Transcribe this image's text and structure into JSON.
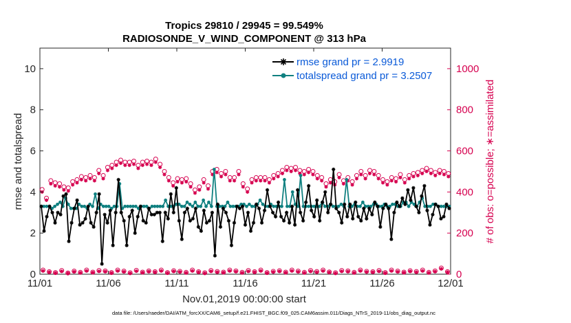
{
  "chart_data": {
    "type": "line",
    "title_line1": "Tropics 29810 / 29945 = 99.549%",
    "title_line2": "RADIOSONDE_V_WIND_COMPONENT @ 313 hPa",
    "xlabel": "Nov.01,2019 00:00:00 start",
    "ylabel_left": "rmse and totalspread",
    "ylabel_right": "# of obs: o=possible; ∗=assimilated",
    "xlim": [
      0,
      30
    ],
    "ylim_left": [
      0,
      11
    ],
    "ylim_right": [
      0,
      1100
    ],
    "x_ticks": [
      0,
      5,
      10,
      15,
      20,
      25,
      30
    ],
    "x_tick_labels": [
      "11/01",
      "11/06",
      "11/11",
      "11/16",
      "11/21",
      "11/26",
      "12/01"
    ],
    "y_left_ticks": [
      "0",
      "2",
      "4",
      "6",
      "8",
      "10"
    ],
    "y_right_ticks": [
      "0",
      "200",
      "400",
      "600",
      "800",
      "1000"
    ],
    "legend": {
      "rmse": "rmse grand pr = 2.9919",
      "spread": "totalspread grand pr = 3.2507"
    },
    "colors": {
      "rmse": "#000000",
      "spread": "#0f8080",
      "obs": "#d6004f",
      "legend_text": "#0a5ad8"
    },
    "series": [
      {
        "name": "rmse",
        "values": [
          3.3,
          2.1,
          2.8,
          3.3,
          3.0,
          2.5,
          3.0,
          2.9,
          3.8,
          3.9,
          1.6,
          2.5,
          3.2,
          3.6,
          2.4,
          2.5,
          2.7,
          3.3,
          2.5,
          2.3,
          3.0,
          3.9,
          0.5,
          2.9,
          2.5,
          3.1,
          1.4,
          3.0,
          4.6,
          3.0,
          2.6,
          1.4,
          2.8,
          3.1,
          2.0,
          2.8,
          3.3,
          2.6,
          2.5,
          3.2,
          2.9,
          2.9,
          3.0,
          3.0,
          1.6,
          3.0,
          2.7,
          3.9,
          3.0,
          4.2,
          2.6,
          1.7,
          3.0,
          3.2,
          2.6,
          2.7,
          3.2,
          2.3,
          2.1,
          3.1,
          2.5,
          2.6,
          3.0,
          0.9,
          3.4,
          2.3,
          3.2,
          3.0,
          2.6,
          1.4,
          2.5,
          3.3,
          3.2,
          3.3,
          2.4,
          3.0,
          2.1,
          2.5,
          3.4,
          3.2,
          2.5,
          3.1,
          4.1,
          3.3,
          3.0,
          2.8,
          3.5,
          2.8,
          2.6,
          3.0,
          2.5,
          3.3,
          2.4,
          4.1,
          3.0,
          2.6,
          3.5,
          4.3,
          3.1,
          2.8,
          3.6,
          2.6,
          3.5,
          4.0,
          3.0,
          3.4,
          5.1,
          3.2,
          3.0,
          2.5,
          3.4,
          2.8,
          3.4,
          2.7,
          3.5,
          2.8,
          2.6,
          3.2,
          2.7,
          3.2,
          2.9,
          3.5,
          3.3,
          2.3,
          3.2,
          3.4,
          3.2,
          1.7,
          3.0,
          3.5,
          3.3,
          3.7,
          3.4,
          4.1,
          3.6,
          4.2,
          3.3,
          3.0,
          3.8,
          4.3,
          3.1,
          2.4,
          2.9,
          3.4,
          3.3,
          2.7,
          2.8,
          3.4,
          3.2
        ]
      },
      {
        "name": "totalspread",
        "values": [
          3.3,
          3.3,
          3.3,
          3.3,
          3.2,
          3.3,
          3.4,
          3.5,
          3.3,
          3.7,
          3.4,
          3.2,
          3.2,
          3.2,
          3.4,
          3.3,
          3.3,
          3.2,
          3.4,
          3.3,
          3.9,
          3.2,
          3.4,
          3.3,
          3.3,
          3.3,
          3.2,
          3.3,
          3.3,
          4.4,
          3.2,
          3.3,
          3.3,
          3.3,
          3.3,
          3.3,
          3.2,
          3.3,
          3.3,
          3.3,
          3.2,
          3.3,
          3.3,
          3.3,
          3.3,
          3.3,
          3.6,
          3.3,
          3.3,
          3.3,
          3.4,
          3.4,
          3.3,
          3.3,
          3.5,
          3.4,
          3.3,
          3.5,
          3.3,
          3.3,
          3.6,
          3.3,
          3.5,
          3.3,
          5.1,
          3.3,
          3.3,
          3.3,
          3.3,
          3.5,
          3.3,
          3.3,
          3.3,
          3.3,
          3.4,
          3.4,
          3.3,
          3.4,
          3.3,
          3.3,
          3.4,
          3.6,
          3.4,
          3.3,
          3.3,
          3.4,
          3.3,
          3.3,
          3.3,
          3.3,
          4.6,
          3.3,
          3.3,
          4.0,
          3.4,
          3.3,
          4.8,
          3.3,
          3.3,
          3.3,
          3.3,
          3.3,
          3.3,
          3.3,
          3.5,
          3.3,
          3.3,
          3.4,
          3.3,
          3.3,
          3.3,
          3.4,
          3.3,
          4.6,
          3.3,
          3.3,
          3.4,
          3.3,
          3.3,
          3.5,
          3.3,
          3.3,
          3.3,
          3.4,
          3.4,
          3.3,
          3.3,
          3.4,
          3.3,
          3.3,
          3.4,
          3.4,
          3.3,
          3.3,
          3.5,
          3.5,
          3.3,
          3.5,
          3.4,
          3.3,
          3.5,
          3.7,
          3.3,
          3.3,
          3.3,
          3.4,
          3.4,
          3.3,
          3.3,
          3.3,
          3.3,
          3.3
        ]
      }
    ],
    "obs_possible_high": [
      412,
      370,
      455,
      445,
      440,
      425,
      420,
      450,
      460,
      475,
      470,
      480,
      470,
      505,
      480,
      520,
      530,
      545,
      555,
      545,
      545,
      550,
      530,
      545,
      550,
      545,
      560,
      535,
      500,
      470,
      445,
      465,
      460,
      465,
      440,
      410,
      425,
      460,
      430,
      500,
      510,
      490,
      500,
      470,
      470,
      500,
      440,
      415,
      460,
      470,
      470,
      470,
      460,
      480,
      490,
      505,
      520,
      515,
      520,
      505,
      500,
      510,
      500,
      480,
      470,
      440,
      460,
      450,
      485,
      455,
      470,
      450,
      480,
      500,
      480,
      505,
      500,
      480,
      460,
      450,
      470,
      465,
      485,
      460,
      480,
      490,
      495,
      505,
      515,
      505,
      495,
      505,
      500,
      490
    ],
    "obs_assimilated_high": [
      400,
      360,
      440,
      430,
      425,
      410,
      405,
      435,
      445,
      460,
      455,
      465,
      455,
      490,
      465,
      505,
      515,
      530,
      540,
      530,
      530,
      535,
      515,
      530,
      535,
      530,
      545,
      520,
      485,
      455,
      430,
      450,
      445,
      450,
      425,
      395,
      410,
      445,
      415,
      485,
      495,
      475,
      485,
      455,
      455,
      485,
      425,
      400,
      445,
      455,
      455,
      455,
      445,
      465,
      475,
      490,
      505,
      500,
      505,
      490,
      485,
      495,
      485,
      465,
      455,
      425,
      445,
      435,
      470,
      440,
      455,
      435,
      465,
      485,
      465,
      490,
      485,
      465,
      445,
      435,
      455,
      450,
      470,
      445,
      465,
      475,
      480,
      490,
      500,
      490,
      480,
      490,
      485,
      475
    ],
    "obs_possible_low": [
      20,
      12,
      8,
      18,
      6,
      15,
      9,
      20,
      10,
      18,
      16,
      8,
      20,
      15,
      7,
      19,
      10,
      16,
      12,
      20,
      8,
      17,
      14,
      9,
      20,
      12,
      7,
      18,
      13,
      10,
      20,
      16,
      9,
      18,
      12,
      20,
      8,
      14,
      17,
      10,
      20,
      15,
      9,
      18,
      13,
      20,
      11,
      7,
      18,
      16,
      9,
      20,
      14,
      12,
      18,
      8,
      20,
      15,
      10,
      17,
      13,
      20,
      9,
      16,
      30,
      12
    ],
    "obs_assimilated_low": [
      16,
      10,
      6,
      14,
      5,
      12,
      7,
      16,
      8,
      14,
      13,
      6,
      16,
      12,
      5,
      15,
      8,
      13,
      10,
      16,
      6,
      14,
      11,
      7,
      16,
      10,
      5,
      14,
      10,
      8,
      16,
      13,
      7,
      14,
      10,
      16,
      6,
      11,
      14,
      8,
      16,
      12,
      7,
      14,
      10,
      16,
      9,
      5,
      14,
      13,
      7,
      16,
      11,
      10,
      14,
      6,
      16,
      12,
      8,
      14,
      10,
      16,
      7,
      13,
      26,
      10
    ]
  },
  "footer": "data file: /Users/raeder/DAI/ATM_forcXX/CAM6_setup/f.e21.FHIST_BGC.f09_025.CAM6assim.011/Diags_NTrS_2019-11/obs_diag_output.nc"
}
